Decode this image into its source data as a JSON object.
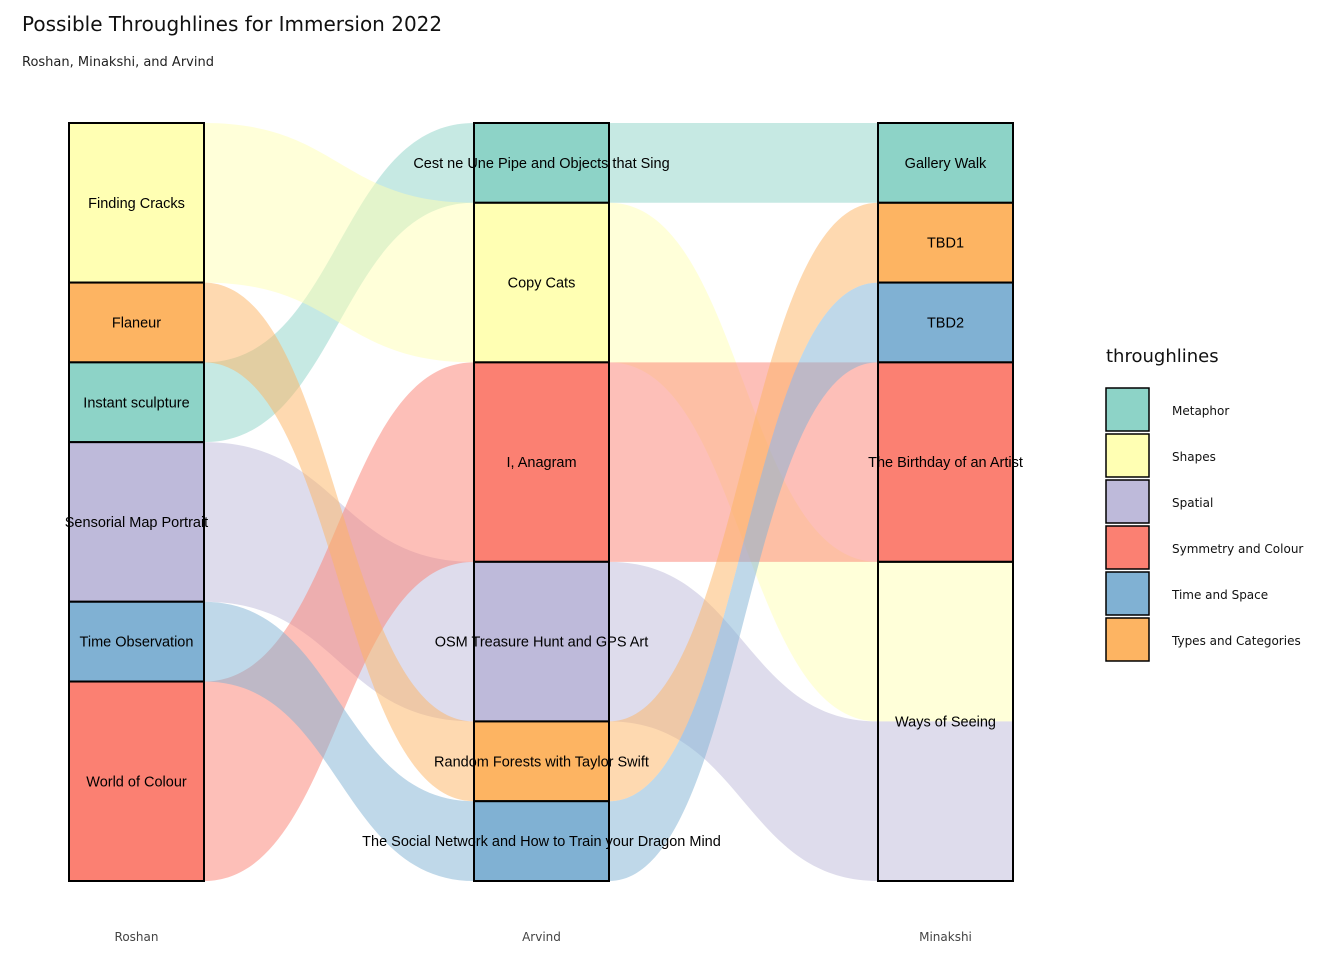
{
  "chart_data": {
    "type": "alluvial",
    "title": "Possible Throughlines for Immersion 2022",
    "subtitle": "Roshan, Minakshi, and Arvind",
    "axes": [
      "Roshan",
      "Arvind",
      "Minakshi"
    ],
    "legend": {
      "title": "throughlines",
      "position": "right",
      "entries": [
        {
          "name": "Metaphor",
          "color": "#8DD3C7"
        },
        {
          "name": "Shapes",
          "color": "#FFFFB3"
        },
        {
          "name": "Spatial",
          "color": "#BEBADA"
        },
        {
          "name": "Symmetry and Colour",
          "color": "#FB8072"
        },
        {
          "name": "Time and Space",
          "color": "#80B1D3"
        },
        {
          "name": "Types and Categories",
          "color": "#FDB462"
        }
      ]
    },
    "nodes": {
      "Roshan": [
        {
          "label": "Finding Cracks",
          "value": 2,
          "throughline": "Shapes"
        },
        {
          "label": "Flaneur",
          "value": 1,
          "throughline": "Types and Categories"
        },
        {
          "label": "Instant sculpture",
          "value": 1,
          "throughline": "Metaphor"
        },
        {
          "label": "Sensorial Map Portrait",
          "value": 2,
          "throughline": "Spatial"
        },
        {
          "label": "Time Observation",
          "value": 1,
          "throughline": "Time and Space"
        },
        {
          "label": "World of Colour",
          "value": 2.5,
          "throughline": "Symmetry and Colour"
        }
      ],
      "Arvind": [
        {
          "label": "Cest ne Une Pipe and Objects that Sing",
          "value": 1,
          "throughline": "Metaphor"
        },
        {
          "label": "Copy Cats",
          "value": 2,
          "throughline": "Shapes"
        },
        {
          "label": "I, Anagram",
          "value": 2.5,
          "throughline": "Symmetry and Colour"
        },
        {
          "label": "OSM Treasure Hunt and GPS Art",
          "value": 2,
          "throughline": "Spatial"
        },
        {
          "label": "Random Forests with Taylor Swift",
          "value": 1,
          "throughline": "Types and Categories"
        },
        {
          "label": "The Social Network and How to Train your Dragon Mind",
          "value": 1,
          "throughline": "Time and Space"
        }
      ],
      "Minakshi": [
        {
          "label": "Gallery Walk",
          "value": 1,
          "throughline": "Metaphor"
        },
        {
          "label": "TBD1",
          "value": 1,
          "throughline": "Types and Categories"
        },
        {
          "label": "TBD2",
          "value": 1,
          "throughline": "Time and Space"
        },
        {
          "label": "The Birthday of an Artist",
          "value": 2.5,
          "throughline": "Symmetry and Colour"
        },
        {
          "label": "Ways of Seeing",
          "value": 4,
          "throughline": "Shapes / Spatial"
        }
      ]
    },
    "flows": [
      {
        "throughline": "Metaphor",
        "value": 1,
        "path": [
          "Instant sculpture",
          "Cest ne Une Pipe and Objects that Sing",
          "Gallery Walk"
        ]
      },
      {
        "throughline": "Shapes",
        "value": 2,
        "path": [
          "Finding Cracks",
          "Copy Cats",
          "Ways of Seeing"
        ]
      },
      {
        "throughline": "Spatial",
        "value": 2,
        "path": [
          "Sensorial Map Portrait",
          "OSM Treasure Hunt and GPS Art",
          "Ways of Seeing"
        ]
      },
      {
        "throughline": "Symmetry and Colour",
        "value": 2.5,
        "path": [
          "World of Colour",
          "I, Anagram",
          "The Birthday of an Artist"
        ]
      },
      {
        "throughline": "Time and Space",
        "value": 1,
        "path": [
          "Time Observation",
          "The Social Network and How to Train your Dragon Mind",
          "TBD2"
        ]
      },
      {
        "throughline": "Types and Categories",
        "value": 1,
        "path": [
          "Flaneur",
          "Random Forests with Taylor Swift",
          "TBD1"
        ]
      }
    ]
  }
}
